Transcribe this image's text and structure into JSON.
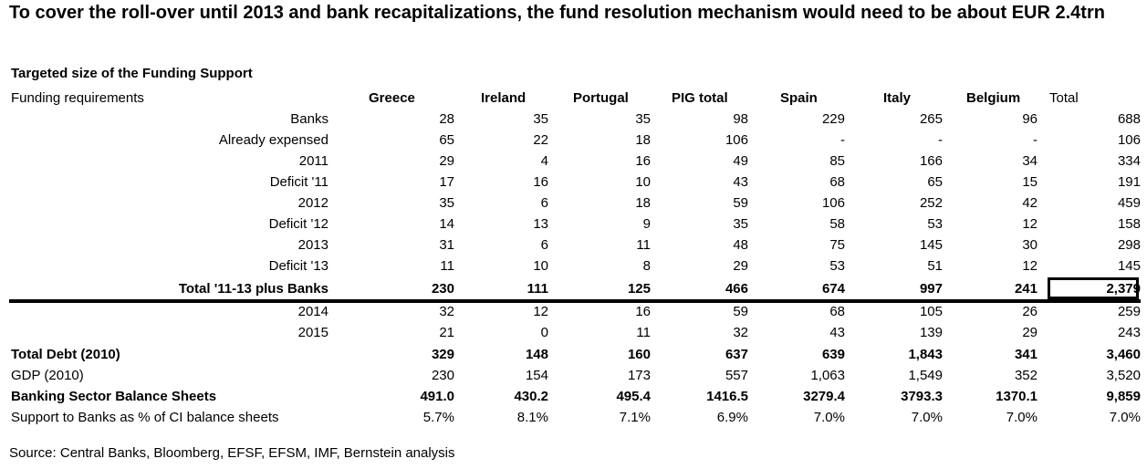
{
  "title": "To cover the roll-over until 2013 and bank recapitalizations, the fund resolution mechanism would need to be about EUR 2.4trn",
  "table": {
    "subtitle": "Targeted size of the Funding Support",
    "header_label": "Funding requirements",
    "columns": [
      "Greece",
      "Ireland",
      "Portugal",
      "PIG total",
      "Spain",
      "Italy",
      "Belgium",
      "Total"
    ],
    "rows": [
      {
        "label": "Banks",
        "values": [
          "28",
          "35",
          "35",
          "98",
          "229",
          "265",
          "96",
          "688"
        ]
      },
      {
        "label": "Already expensed",
        "values": [
          "65",
          "22",
          "18",
          "106",
          "-",
          "-",
          "-",
          "106"
        ]
      },
      {
        "label": "2011",
        "values": [
          "29",
          "4",
          "16",
          "49",
          "85",
          "166",
          "34",
          "334"
        ]
      },
      {
        "label": "Deficit '11",
        "values": [
          "17",
          "16",
          "10",
          "43",
          "68",
          "65",
          "15",
          "191"
        ]
      },
      {
        "label": "2012",
        "values": [
          "35",
          "6",
          "18",
          "59",
          "106",
          "252",
          "42",
          "459"
        ]
      },
      {
        "label": "Deficit '12",
        "values": [
          "14",
          "13",
          "9",
          "35",
          "58",
          "53",
          "12",
          "158"
        ]
      },
      {
        "label": "2013",
        "values": [
          "31",
          "6",
          "11",
          "48",
          "75",
          "145",
          "30",
          "298"
        ]
      },
      {
        "label": "Deficit '13",
        "values": [
          "11",
          "10",
          "8",
          "29",
          "53",
          "51",
          "12",
          "145"
        ]
      },
      {
        "label": "Total '11-13 plus Banks",
        "values": [
          "230",
          "111",
          "125",
          "466",
          "674",
          "997",
          "241",
          "2,379"
        ]
      },
      {
        "label": "2014",
        "values": [
          "32",
          "12",
          "16",
          "59",
          "68",
          "105",
          "26",
          "259"
        ]
      },
      {
        "label": "2015",
        "values": [
          "21",
          "0",
          "11",
          "32",
          "43",
          "139",
          "29",
          "243"
        ]
      },
      {
        "label": "Total Debt (2010)",
        "values": [
          "329",
          "148",
          "160",
          "637",
          "639",
          "1,843",
          "341",
          "3,460"
        ]
      },
      {
        "label": "GDP (2010)",
        "values": [
          "230",
          "154",
          "173",
          "557",
          "1,063",
          "1,549",
          "352",
          "3,520"
        ]
      },
      {
        "label": "Banking Sector Balance Sheets",
        "values": [
          "491.0",
          "430.2",
          "495.4",
          "1416.5",
          "3279.4",
          "3793.3",
          "1370.1",
          "9,859"
        ]
      },
      {
        "label": "Support to Banks as % of CI balance sheets",
        "values": [
          "5.7%",
          "8.1%",
          "7.1%",
          "6.9%",
          "7.0%",
          "7.0%",
          "7.0%",
          "7.0%"
        ]
      }
    ]
  },
  "source": "Source: Central Banks, Bloomberg, EFSF, EFSM, IMF, Bernstein analysis"
}
